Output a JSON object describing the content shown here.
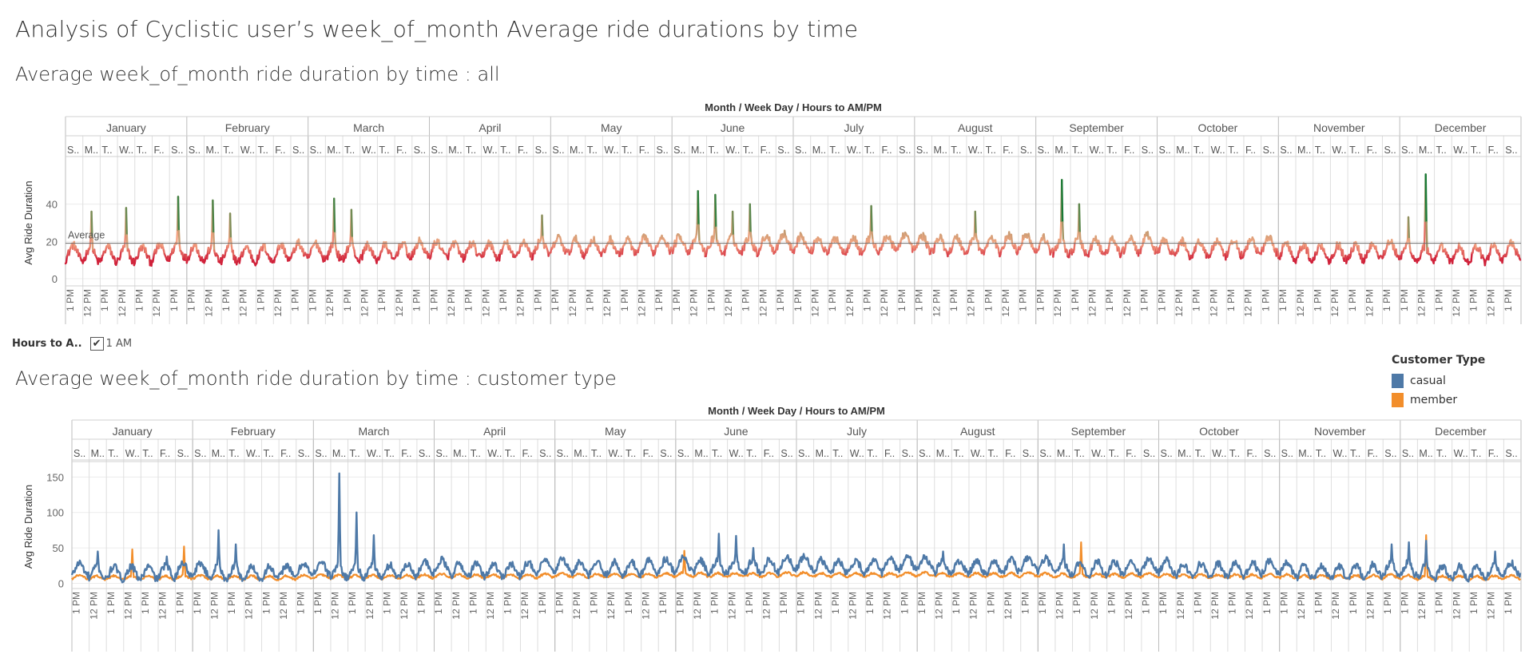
{
  "title": "Analysis of  Cyclistic user’s week_of_month Average ride durations by time",
  "colors": {
    "casual": "#4e79a7",
    "member": "#f28e2b",
    "diverging_low": "#d0213a",
    "diverging_mid": "#f4a582",
    "diverging_high": "#1a7a36"
  },
  "filter": {
    "label": "Hours to A..",
    "checked": true,
    "checkbox_mark": "✔",
    "value": "1 AM"
  },
  "legend": {
    "title": "Customer Type",
    "items": [
      {
        "label": "casual",
        "color": "#4e79a7"
      },
      {
        "label": "member",
        "color": "#f28e2b"
      }
    ]
  },
  "chart_data": [
    {
      "type": "line",
      "title": "Average week_of_month ride duration by time : all",
      "header_title": "Month  /  Week Day  /  Hours to AM/PM",
      "ylabel": "Avg Ride Duration",
      "ylim": [
        -3,
        63
      ],
      "yticks": [
        0,
        20,
        40
      ],
      "reference_line": {
        "label": "Average",
        "value": 19
      },
      "months": [
        "January",
        "February",
        "March",
        "April",
        "May",
        "June",
        "July",
        "August",
        "September",
        "October",
        "November",
        "December"
      ],
      "weekday_labels": [
        "S..",
        "M..",
        "T..",
        "W..",
        "T..",
        "F..",
        "S.."
      ],
      "hour_labels": [
        "1 PM",
        "12 PM"
      ],
      "grid": true,
      "color_mode": "diverging-by-value",
      "baseline_daily_values": [
        14,
        13,
        13,
        13,
        13,
        14,
        15
      ],
      "month_offsets": [
        0,
        0,
        1,
        2,
        4,
        5,
        5,
        5,
        4,
        3,
        1,
        0
      ],
      "peaks": [
        {
          "month": "January",
          "weekday": 1,
          "value": 36
        },
        {
          "month": "January",
          "weekday": 3,
          "value": 38
        },
        {
          "month": "January",
          "weekday": 6,
          "value": 44
        },
        {
          "month": "February",
          "weekday": 1,
          "value": 42
        },
        {
          "month": "February",
          "weekday": 2,
          "value": 35
        },
        {
          "month": "March",
          "weekday": 1,
          "value": 43
        },
        {
          "month": "March",
          "weekday": 2,
          "value": 37
        },
        {
          "month": "April",
          "weekday": 6,
          "value": 34
        },
        {
          "month": "June",
          "weekday": 1,
          "value": 47
        },
        {
          "month": "June",
          "weekday": 2,
          "value": 45
        },
        {
          "month": "June",
          "weekday": 3,
          "value": 36
        },
        {
          "month": "June",
          "weekday": 4,
          "value": 40
        },
        {
          "month": "July",
          "weekday": 4,
          "value": 39
        },
        {
          "month": "August",
          "weekday": 3,
          "value": 36
        },
        {
          "month": "September",
          "weekday": 1,
          "value": 53
        },
        {
          "month": "September",
          "weekday": 2,
          "value": 40
        },
        {
          "month": "December",
          "weekday": 0,
          "value": 33
        },
        {
          "month": "December",
          "weekday": 1,
          "value": 56
        }
      ]
    },
    {
      "type": "line",
      "title": "Average week_of_month ride duration by time : customer type",
      "header_title": "Month  /  Week Day  /  Hours to AM/PM",
      "ylabel": "Avg Ride Duration",
      "ylim": [
        -5,
        165
      ],
      "yticks": [
        0,
        50,
        100,
        150
      ],
      "months": [
        "January",
        "February",
        "March",
        "April",
        "May",
        "June",
        "July",
        "August",
        "September",
        "October",
        "November",
        "December"
      ],
      "weekday_labels": [
        "S..",
        "M..",
        "T..",
        "W..",
        "T..",
        "F..",
        "S.."
      ],
      "hour_labels": [
        "1 PM",
        "12 PM"
      ],
      "grid": true,
      "series": [
        {
          "name": "casual",
          "color": "#4e79a7",
          "baseline_daily_values": [
            20,
            15,
            15,
            15,
            15,
            17,
            20
          ],
          "month_offsets": [
            0,
            0,
            2,
            4,
            6,
            8,
            9,
            8,
            6,
            4,
            1,
            0
          ],
          "peaks": [
            {
              "month": "January",
              "weekday": 1,
              "value": 45
            },
            {
              "month": "January",
              "weekday": 5,
              "value": 38
            },
            {
              "month": "February",
              "weekday": 1,
              "value": 75
            },
            {
              "month": "February",
              "weekday": 2,
              "value": 55
            },
            {
              "month": "March",
              "weekday": 1,
              "value": 155
            },
            {
              "month": "March",
              "weekday": 2,
              "value": 100
            },
            {
              "month": "March",
              "weekday": 3,
              "value": 68
            },
            {
              "month": "June",
              "weekday": 2,
              "value": 70
            },
            {
              "month": "June",
              "weekday": 3,
              "value": 67
            },
            {
              "month": "June",
              "weekday": 4,
              "value": 50
            },
            {
              "month": "August",
              "weekday": 1,
              "value": 45
            },
            {
              "month": "September",
              "weekday": 1,
              "value": 55
            },
            {
              "month": "November",
              "weekday": 6,
              "value": 55
            },
            {
              "month": "December",
              "weekday": 0,
              "value": 58
            },
            {
              "month": "December",
              "weekday": 1,
              "value": 60
            },
            {
              "month": "December",
              "weekday": 5,
              "value": 45
            }
          ]
        },
        {
          "name": "member",
          "color": "#f28e2b",
          "baseline_daily_values": [
            9,
            8,
            8,
            8,
            8,
            8,
            9
          ],
          "month_offsets": [
            0,
            0,
            1,
            2,
            3,
            4,
            4,
            4,
            3,
            2,
            1,
            0
          ],
          "peaks": [
            {
              "month": "January",
              "weekday": 3,
              "value": 48
            },
            {
              "month": "January",
              "weekday": 6,
              "value": 52
            },
            {
              "month": "June",
              "weekday": 0,
              "value": 46
            },
            {
              "month": "September",
              "weekday": 2,
              "value": 58
            },
            {
              "month": "December",
              "weekday": 1,
              "value": 68
            }
          ]
        }
      ]
    }
  ]
}
